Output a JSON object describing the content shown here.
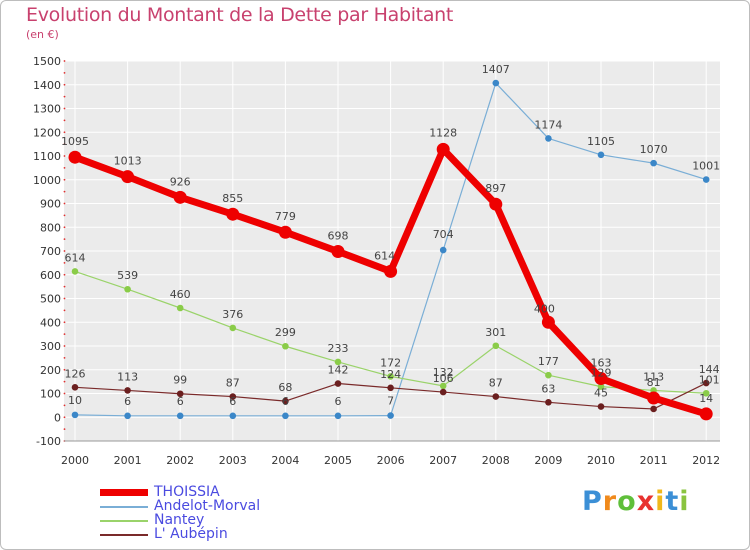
{
  "header": {
    "title": "Evolution du Montant de la Dette par Habitant",
    "subtitle": "(en €)"
  },
  "logo": {
    "text": "Proxiti",
    "letters": [
      "P",
      "r",
      "o",
      "x",
      "i",
      "t",
      "i"
    ],
    "colors": [
      "#3b8fd6",
      "#f08a1c",
      "#5fbf3a",
      "#e8322f",
      "#f0b81c",
      "#3b8fd6",
      "#8ac43f"
    ]
  },
  "chart_data": {
    "type": "line",
    "title": "Evolution du Montant de la Dette par Habitant",
    "subtitle": "(en €)",
    "xlabel": "",
    "ylabel": "",
    "x": [
      "2000",
      "2001",
      "2002",
      "2003",
      "2004",
      "2005",
      "2006",
      "2007",
      "2008",
      "2009",
      "2010",
      "2011",
      "2012"
    ],
    "ylim": [
      -100,
      1500
    ],
    "yticks": [
      -100,
      0,
      100,
      200,
      300,
      400,
      500,
      600,
      700,
      800,
      900,
      1000,
      1100,
      1200,
      1300,
      1400,
      1500
    ],
    "grid": true,
    "legend_position": "bottom-left",
    "series": [
      {
        "name": "THOISSIA",
        "color": "#ee0000",
        "values": [
          1095,
          1013,
          926,
          855,
          779,
          698,
          614,
          1128,
          897,
          400,
          163,
          81,
          14
        ]
      },
      {
        "name": "Andelot-Morval",
        "color": "#7aaed6",
        "marker": "#3b87c8",
        "values": [
          10,
          6,
          6,
          6,
          6,
          6,
          7,
          704,
          1407,
          1174,
          1105,
          1070,
          1001
        ]
      },
      {
        "name": "Nantey",
        "color": "#9ad36a",
        "marker": "#8acc48",
        "values": [
          614,
          539,
          460,
          376,
          299,
          233,
          172,
          132,
          301,
          177,
          129,
          113,
          101
        ]
      },
      {
        "name": "L' Aubépin",
        "color": "#7a2a2a",
        "marker": "#6b1f1f",
        "values": [
          126,
          113,
          99,
          87,
          68,
          142,
          124,
          106,
          87,
          63,
          45,
          35,
          144
        ]
      }
    ],
    "data_labels": {
      "THOISSIA": [
        "1095",
        "1013",
        "926",
        "855",
        "779",
        "698",
        "614",
        "1128",
        "897",
        "400",
        "163",
        "81",
        "14"
      ],
      "Andelot-Morval": [
        "10",
        "6",
        "6",
        "6",
        "6",
        "6",
        "7",
        "704",
        "1407",
        "1174",
        "1105",
        "1070",
        "1001"
      ],
      "Nantey": [
        "614",
        "539",
        "460",
        "376",
        "299",
        "233",
        "172",
        "132",
        "301",
        "177",
        "129",
        "113",
        "101"
      ],
      "L' Aubépin": [
        "126",
        "113",
        "99",
        "87",
        "68",
        "142",
        "124",
        "106",
        "87",
        "63",
        "45",
        "",
        "144"
      ]
    }
  }
}
